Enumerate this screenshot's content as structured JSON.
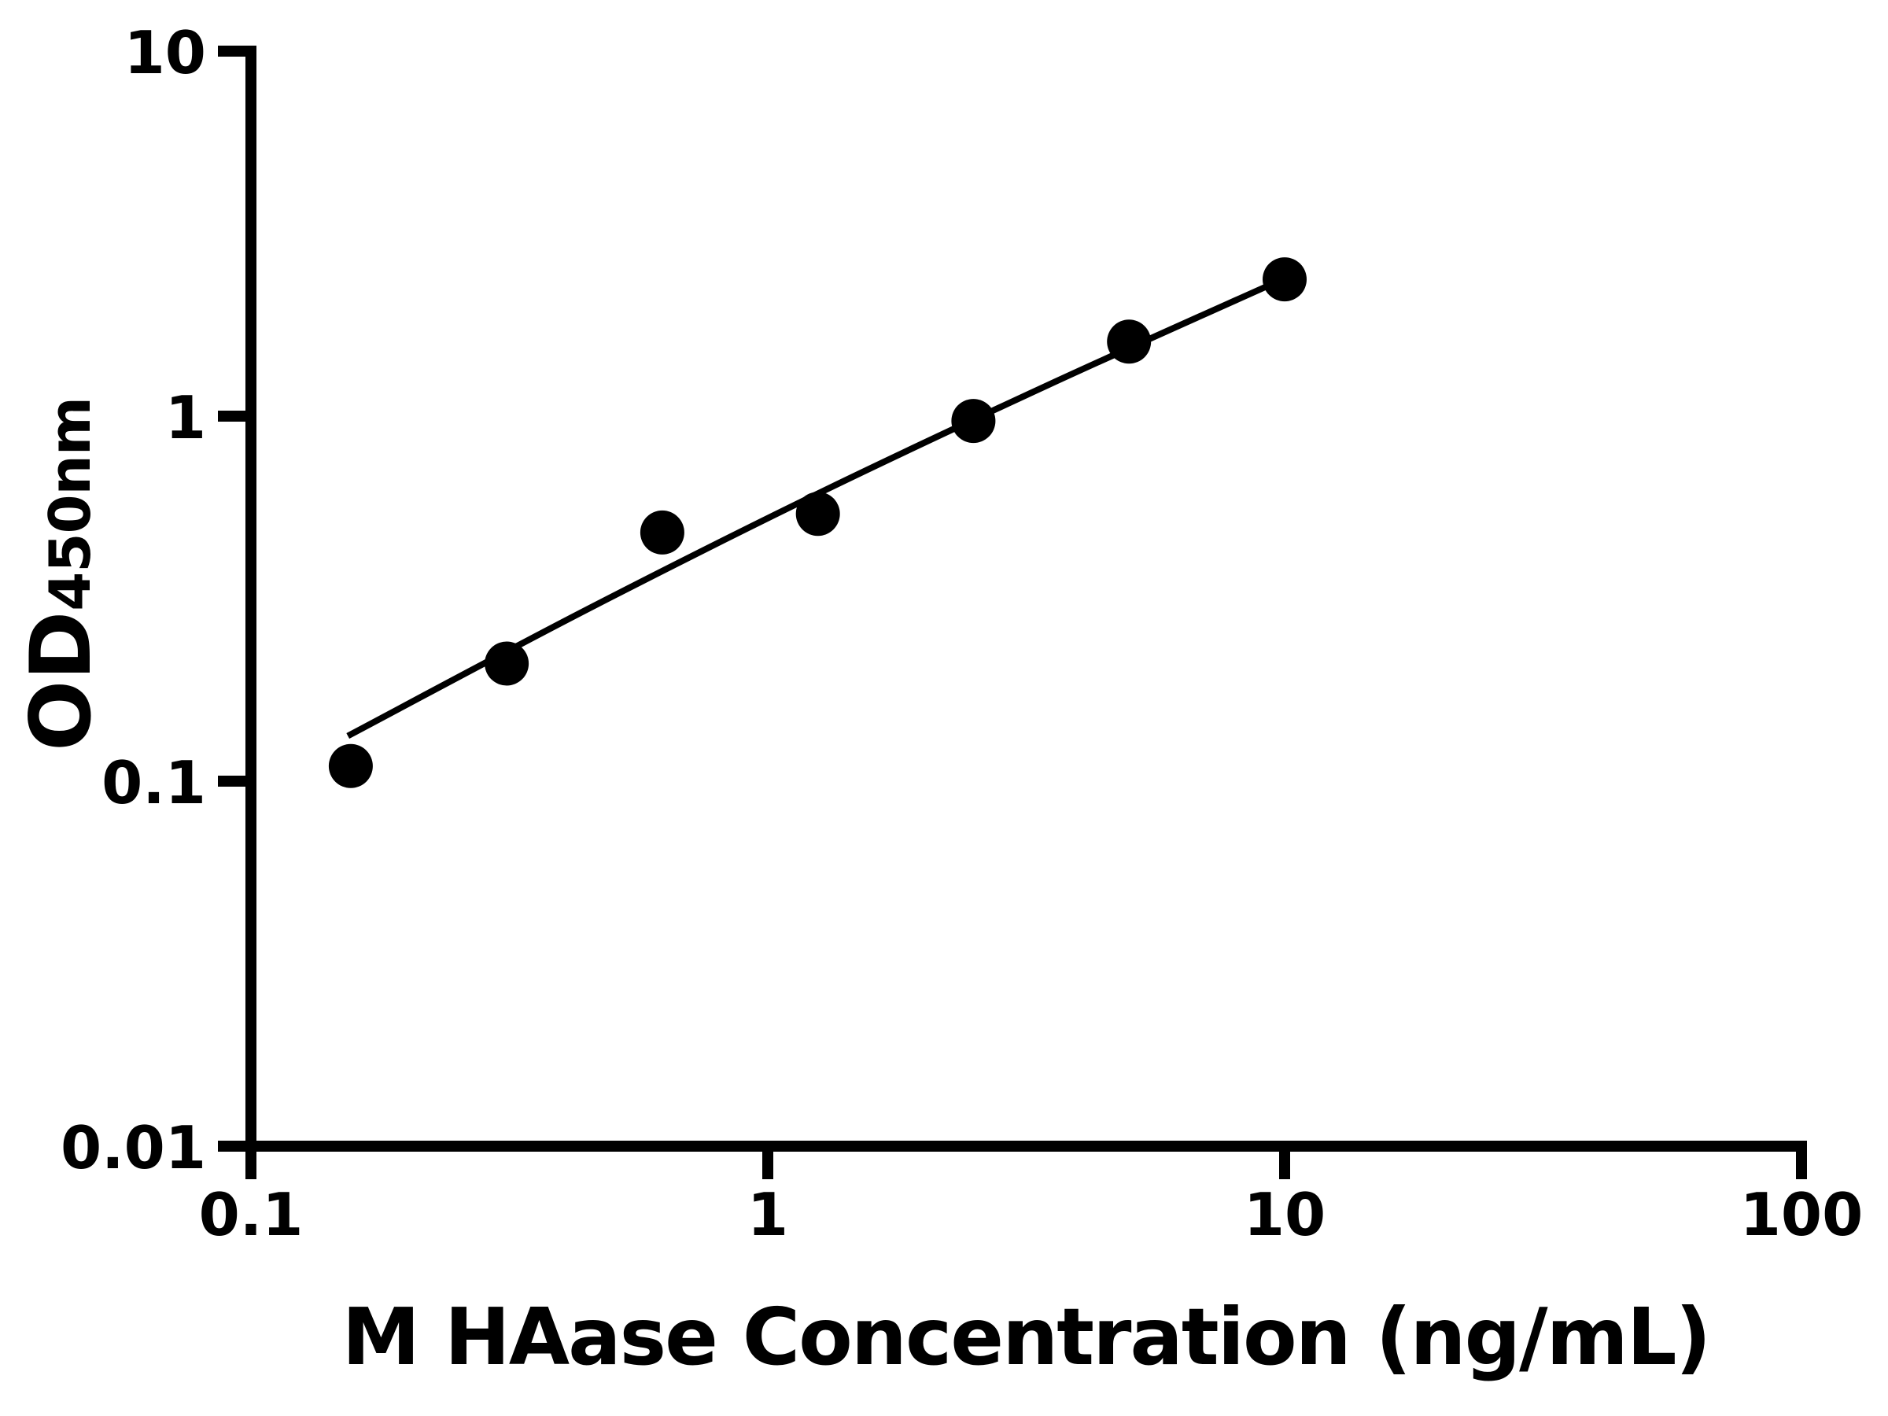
{
  "chart_data": {
    "type": "scatter",
    "title": "",
    "xlabel": "M HAase Concentration (ng/mL)",
    "ylabel_main": "OD",
    "ylabel_subscript": "450nm",
    "x_scale": "log",
    "y_scale": "log",
    "xlim": [
      0.1,
      100
    ],
    "ylim": [
      0.01,
      10
    ],
    "x_ticks": [
      0.1,
      1,
      10,
      100
    ],
    "x_tick_labels": [
      "0.1",
      "1",
      "10",
      "100"
    ],
    "y_ticks": [
      10,
      1,
      0.1,
      0.01
    ],
    "y_tick_labels": [
      "10",
      "1",
      "0.1",
      "0.01"
    ],
    "grid": false,
    "legend": "none",
    "marker_color": "#000000",
    "line_color": "#000000",
    "axis_color": "#000000",
    "background": "#ffffff",
    "series": [
      {
        "name": "standard-points",
        "type": "scatter",
        "points": [
          [
            0.156,
            0.11
          ],
          [
            0.3125,
            0.21
          ],
          [
            0.625,
            0.48
          ],
          [
            1.25,
            0.54
          ],
          [
            2.5,
            0.97
          ],
          [
            5,
            1.6
          ],
          [
            10,
            2.37
          ]
        ]
      },
      {
        "name": "fit-curve",
        "type": "line",
        "points": [
          [
            0.154,
            0.133
          ],
          [
            0.436,
            0.29
          ],
          [
            1.24,
            0.61
          ],
          [
            3.5,
            1.22
          ],
          [
            9.9,
            2.37
          ]
        ]
      }
    ]
  }
}
